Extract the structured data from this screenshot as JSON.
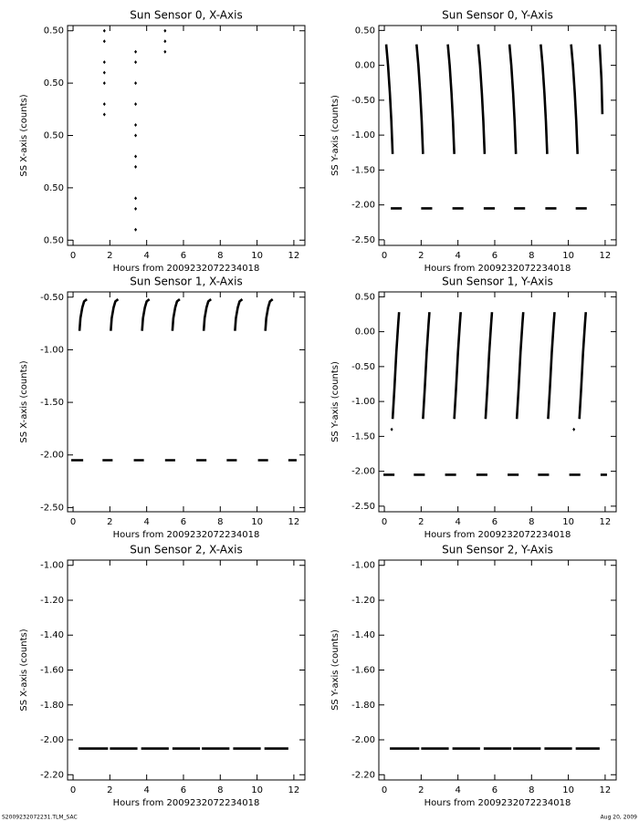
{
  "chart_data": [
    {
      "type": "scatter",
      "title": "Sun Sensor 0, X-Axis",
      "xlabel": "Hours from 2009232072234018",
      "ylabel": "SS X-axis (counts)",
      "xlim": [
        -0.3,
        12.6
      ],
      "xticks": [
        0,
        2,
        4,
        6,
        8,
        10,
        12
      ],
      "ylim": [
        0.49958,
        0.50042
      ],
      "yticks": [
        {
          "value": 0.4996,
          "label": "0.50"
        },
        {
          "value": 0.4998,
          "label": "0.50"
        },
        {
          "value": 0.5,
          "label": "0.50"
        },
        {
          "value": 0.5002,
          "label": "0.50"
        },
        {
          "value": 0.5004,
          "label": "0.50"
        }
      ],
      "series": [
        {
          "color": "#000000",
          "mode": "markers",
          "x": [
            1.7,
            1.7,
            1.7,
            1.7,
            1.7,
            1.7,
            1.7,
            3.4,
            3.4,
            3.4,
            3.4,
            3.4,
            3.4,
            3.4,
            3.4,
            3.4,
            3.4,
            3.4,
            5.0,
            5.0,
            5.0
          ],
          "values": [
            0.5004,
            0.50036,
            0.50028,
            0.50024,
            0.5002,
            0.50012,
            0.50008,
            0.50032,
            0.50028,
            0.5002,
            0.50012,
            0.50004,
            0.5,
            0.49992,
            0.49988,
            0.49976,
            0.49972,
            0.49964,
            0.5004,
            0.50036,
            0.50032
          ]
        }
      ]
    },
    {
      "type": "line",
      "title": "Sun Sensor 0, Y-Axis",
      "xlabel": "Hours from 2009232072234018",
      "ylabel": "SS Y-axis (counts)",
      "xlim": [
        -0.3,
        12.6
      ],
      "xticks": [
        0,
        2,
        4,
        6,
        8,
        10,
        12
      ],
      "ylim": [
        -2.58,
        0.57
      ],
      "yticks": [
        {
          "value": 0.5,
          "label": "0.50"
        },
        {
          "value": 0,
          "label": "0.00"
        },
        {
          "value": -0.5,
          "label": "-0.50"
        },
        {
          "value": -1,
          "label": "-1.00"
        },
        {
          "value": -1.5,
          "label": "-1.50"
        },
        {
          "value": -2,
          "label": "-2.00"
        },
        {
          "value": -2.5,
          "label": "-2.50"
        }
      ],
      "series": [
        {
          "color": "#000000",
          "mode": "lines",
          "x": [
            0.1,
            0.2,
            0.3,
            0.38,
            0.45,
            null,
            1.75,
            1.85,
            1.95,
            2.03,
            2.1,
            null,
            3.45,
            3.55,
            3.65,
            3.73,
            3.8,
            null,
            5.1,
            5.2,
            5.3,
            5.38,
            5.45,
            null,
            6.8,
            6.9,
            7.0,
            7.08,
            7.15,
            null,
            8.5,
            8.6,
            8.7,
            8.78,
            8.85,
            null,
            10.15,
            10.25,
            10.35,
            10.43,
            10.5,
            null,
            11.7,
            11.8,
            11.85
          ],
          "values": [
            0.3,
            0.0,
            -0.4,
            -0.8,
            -1.27,
            null,
            0.3,
            0.0,
            -0.4,
            -0.8,
            -1.27,
            null,
            0.3,
            0.0,
            -0.4,
            -0.8,
            -1.27,
            null,
            0.3,
            0.0,
            -0.4,
            -0.8,
            -1.27,
            null,
            0.3,
            0.0,
            -0.4,
            -0.8,
            -1.27,
            null,
            0.3,
            0.0,
            -0.4,
            -0.8,
            -1.27,
            null,
            0.3,
            0.0,
            -0.4,
            -0.8,
            -1.27,
            null,
            0.3,
            -0.2,
            -0.7
          ]
        },
        {
          "color": "#000000",
          "mode": "lines",
          "x": [
            0.35,
            0.95,
            null,
            2.0,
            2.6,
            null,
            3.7,
            4.3,
            null,
            5.4,
            6.0,
            null,
            7.05,
            7.65,
            null,
            8.75,
            9.35,
            null,
            10.4,
            11.0
          ],
          "values": [
            -2.05,
            -2.05,
            null,
            -2.05,
            -2.05,
            null,
            -2.05,
            -2.05,
            null,
            -2.05,
            -2.05,
            null,
            -2.05,
            -2.05,
            null,
            -2.05,
            -2.05,
            null,
            -2.05,
            -2.05
          ]
        }
      ]
    },
    {
      "type": "line",
      "title": "Sun Sensor 1, X-Axis",
      "xlabel": "Hours from 2009232072234018",
      "ylabel": "SS X-axis (counts)",
      "xlim": [
        -0.3,
        12.6
      ],
      "xticks": [
        0,
        2,
        4,
        6,
        8,
        10,
        12
      ],
      "ylim": [
        -2.54,
        -0.45
      ],
      "yticks": [
        {
          "value": -0.5,
          "label": "-0.50"
        },
        {
          "value": -1,
          "label": "-1.00"
        },
        {
          "value": -1.5,
          "label": "-1.50"
        },
        {
          "value": -2,
          "label": "-2.00"
        },
        {
          "value": -2.5,
          "label": "-2.50"
        }
      ],
      "series": [
        {
          "color": "#000000",
          "mode": "lines",
          "x": [
            0.35,
            0.4,
            0.5,
            0.6,
            0.75,
            null,
            2.05,
            2.1,
            2.2,
            2.3,
            2.45,
            null,
            3.75,
            3.8,
            3.9,
            4.0,
            4.15,
            null,
            5.4,
            5.45,
            5.55,
            5.65,
            5.8,
            null,
            7.1,
            7.15,
            7.25,
            7.35,
            7.5,
            null,
            8.8,
            8.85,
            8.95,
            9.05,
            9.2,
            null,
            10.45,
            10.5,
            10.6,
            10.7,
            10.85
          ],
          "values": [
            -0.82,
            -0.7,
            -0.6,
            -0.54,
            -0.52,
            null,
            -0.82,
            -0.7,
            -0.6,
            -0.54,
            -0.52,
            null,
            -0.82,
            -0.7,
            -0.6,
            -0.54,
            -0.52,
            null,
            -0.82,
            -0.7,
            -0.6,
            -0.54,
            -0.52,
            null,
            -0.82,
            -0.7,
            -0.6,
            -0.54,
            -0.52,
            null,
            -0.82,
            -0.7,
            -0.6,
            -0.54,
            -0.52,
            null,
            -0.82,
            -0.7,
            -0.6,
            -0.54,
            -0.52
          ]
        },
        {
          "color": "#000000",
          "mode": "lines",
          "x": [
            -0.1,
            0.55,
            null,
            1.6,
            2.15,
            null,
            3.3,
            3.85,
            null,
            5.0,
            5.55,
            null,
            6.7,
            7.25,
            null,
            8.35,
            8.9,
            null,
            10.05,
            10.6,
            null,
            11.7,
            12.15
          ],
          "values": [
            -2.05,
            -2.05,
            null,
            -2.05,
            -2.05,
            null,
            -2.05,
            -2.05,
            null,
            -2.05,
            -2.05,
            null,
            -2.05,
            -2.05,
            null,
            -2.05,
            -2.05,
            null,
            -2.05,
            -2.05,
            null,
            -2.05,
            -2.05
          ]
        }
      ]
    },
    {
      "type": "line",
      "title": "Sun Sensor 1, Y-Axis",
      "xlabel": "Hours from 2009232072234018",
      "ylabel": "SS Y-axis (counts)",
      "xlim": [
        -0.3,
        12.6
      ],
      "xticks": [
        0,
        2,
        4,
        6,
        8,
        10,
        12
      ],
      "ylim": [
        -2.58,
        0.57
      ],
      "yticks": [
        {
          "value": 0.5,
          "label": "0.50"
        },
        {
          "value": 0,
          "label": "0.00"
        },
        {
          "value": -0.5,
          "label": "-0.50"
        },
        {
          "value": -1,
          "label": "-1.00"
        },
        {
          "value": -1.5,
          "label": "-1.50"
        },
        {
          "value": -2,
          "label": "-2.00"
        },
        {
          "value": -2.5,
          "label": "-2.50"
        }
      ],
      "series": [
        {
          "color": "#000000",
          "mode": "lines",
          "x": [
            0.45,
            0.55,
            0.65,
            0.75,
            0.8,
            null,
            2.1,
            2.2,
            2.3,
            2.4,
            2.45,
            null,
            3.8,
            3.9,
            4.0,
            4.1,
            4.15,
            null,
            5.5,
            5.6,
            5.7,
            5.8,
            5.85,
            null,
            7.2,
            7.3,
            7.4,
            7.5,
            7.55,
            null,
            8.9,
            9.0,
            9.1,
            9.2,
            9.25,
            null,
            10.6,
            10.7,
            10.8,
            10.9,
            10.95
          ],
          "values": [
            -1.25,
            -0.8,
            -0.3,
            0.1,
            0.28,
            null,
            -1.25,
            -0.8,
            -0.3,
            0.1,
            0.28,
            null,
            -1.25,
            -0.8,
            -0.3,
            0.1,
            0.28,
            null,
            -1.25,
            -0.8,
            -0.3,
            0.1,
            0.28,
            null,
            -1.25,
            -0.8,
            -0.3,
            0.1,
            0.28,
            null,
            -1.25,
            -0.8,
            -0.3,
            0.1,
            0.28,
            null,
            -1.25,
            -0.8,
            -0.3,
            0.1,
            0.28
          ]
        },
        {
          "color": "#000000",
          "mode": "markers",
          "x": [
            0.4,
            10.3
          ],
          "values": [
            -1.4,
            -1.4
          ]
        },
        {
          "color": "#000000",
          "mode": "lines",
          "x": [
            -0.05,
            0.55,
            null,
            1.6,
            2.2,
            null,
            3.3,
            3.9,
            null,
            5.0,
            5.6,
            null,
            6.7,
            7.3,
            null,
            8.35,
            8.95,
            null,
            10.05,
            10.65,
            null,
            11.75,
            12.1
          ],
          "values": [
            -2.05,
            -2.05,
            null,
            -2.05,
            -2.05,
            null,
            -2.05,
            -2.05,
            null,
            -2.05,
            -2.05,
            null,
            -2.05,
            -2.05,
            null,
            -2.05,
            -2.05,
            null,
            -2.05,
            -2.05,
            null,
            -2.05,
            -2.05
          ]
        }
      ]
    },
    {
      "type": "line",
      "title": "Sun Sensor 2, X-Axis",
      "xlabel": "Hours from 2009232072234018",
      "ylabel": "SS X-axis (counts)",
      "xlim": [
        -0.3,
        12.6
      ],
      "xticks": [
        0,
        2,
        4,
        6,
        8,
        10,
        12
      ],
      "ylim": [
        -2.23,
        -0.97
      ],
      "yticks": [
        {
          "value": -1,
          "label": "-1.00"
        },
        {
          "value": -1.2,
          "label": "-1.20"
        },
        {
          "value": -1.4,
          "label": "-1.40"
        },
        {
          "value": -1.6,
          "label": "-1.60"
        },
        {
          "value": -1.8,
          "label": "-1.80"
        },
        {
          "value": -2,
          "label": "-2.00"
        },
        {
          "value": -2.2,
          "label": "-2.20"
        }
      ],
      "series": [
        {
          "color": "#000000",
          "mode": "lines",
          "x": [
            0.3,
            1.9,
            null,
            2.0,
            3.5,
            null,
            3.7,
            5.2,
            null,
            5.4,
            6.9,
            null,
            7.0,
            8.5,
            null,
            8.7,
            10.2,
            null,
            10.4,
            11.7
          ],
          "values": [
            -2.05,
            -2.05,
            null,
            -2.05,
            -2.05,
            null,
            -2.05,
            -2.05,
            null,
            -2.05,
            -2.05,
            null,
            -2.05,
            -2.05,
            null,
            -2.05,
            -2.05,
            null,
            -2.05,
            -2.05
          ]
        }
      ]
    },
    {
      "type": "line",
      "title": "Sun Sensor 2, Y-Axis",
      "xlabel": "Hours from 2009232072234018",
      "ylabel": "SS Y-axis (counts)",
      "xlim": [
        -0.3,
        12.6
      ],
      "xticks": [
        0,
        2,
        4,
        6,
        8,
        10,
        12
      ],
      "ylim": [
        -2.23,
        -0.97
      ],
      "yticks": [
        {
          "value": -1,
          "label": "-1.00"
        },
        {
          "value": -1.2,
          "label": "-1.20"
        },
        {
          "value": -1.4,
          "label": "-1.40"
        },
        {
          "value": -1.6,
          "label": "-1.60"
        },
        {
          "value": -1.8,
          "label": "-1.80"
        },
        {
          "value": -2,
          "label": "-2.00"
        },
        {
          "value": -2.2,
          "label": "-2.20"
        }
      ],
      "series": [
        {
          "color": "#000000",
          "mode": "lines",
          "x": [
            0.3,
            1.9,
            null,
            2.0,
            3.5,
            null,
            3.7,
            5.2,
            null,
            5.4,
            6.9,
            null,
            7.0,
            8.5,
            null,
            8.7,
            10.2,
            null,
            10.4,
            11.7
          ],
          "values": [
            -2.05,
            -2.05,
            null,
            -2.05,
            -2.05,
            null,
            -2.05,
            -2.05,
            null,
            -2.05,
            -2.05,
            null,
            -2.05,
            -2.05,
            null,
            -2.05,
            -2.05,
            null,
            -2.05,
            -2.05
          ]
        }
      ]
    }
  ],
  "footer_left": "S2009232072231.TLM_SAC",
  "footer_right": "Aug 20, 2009"
}
